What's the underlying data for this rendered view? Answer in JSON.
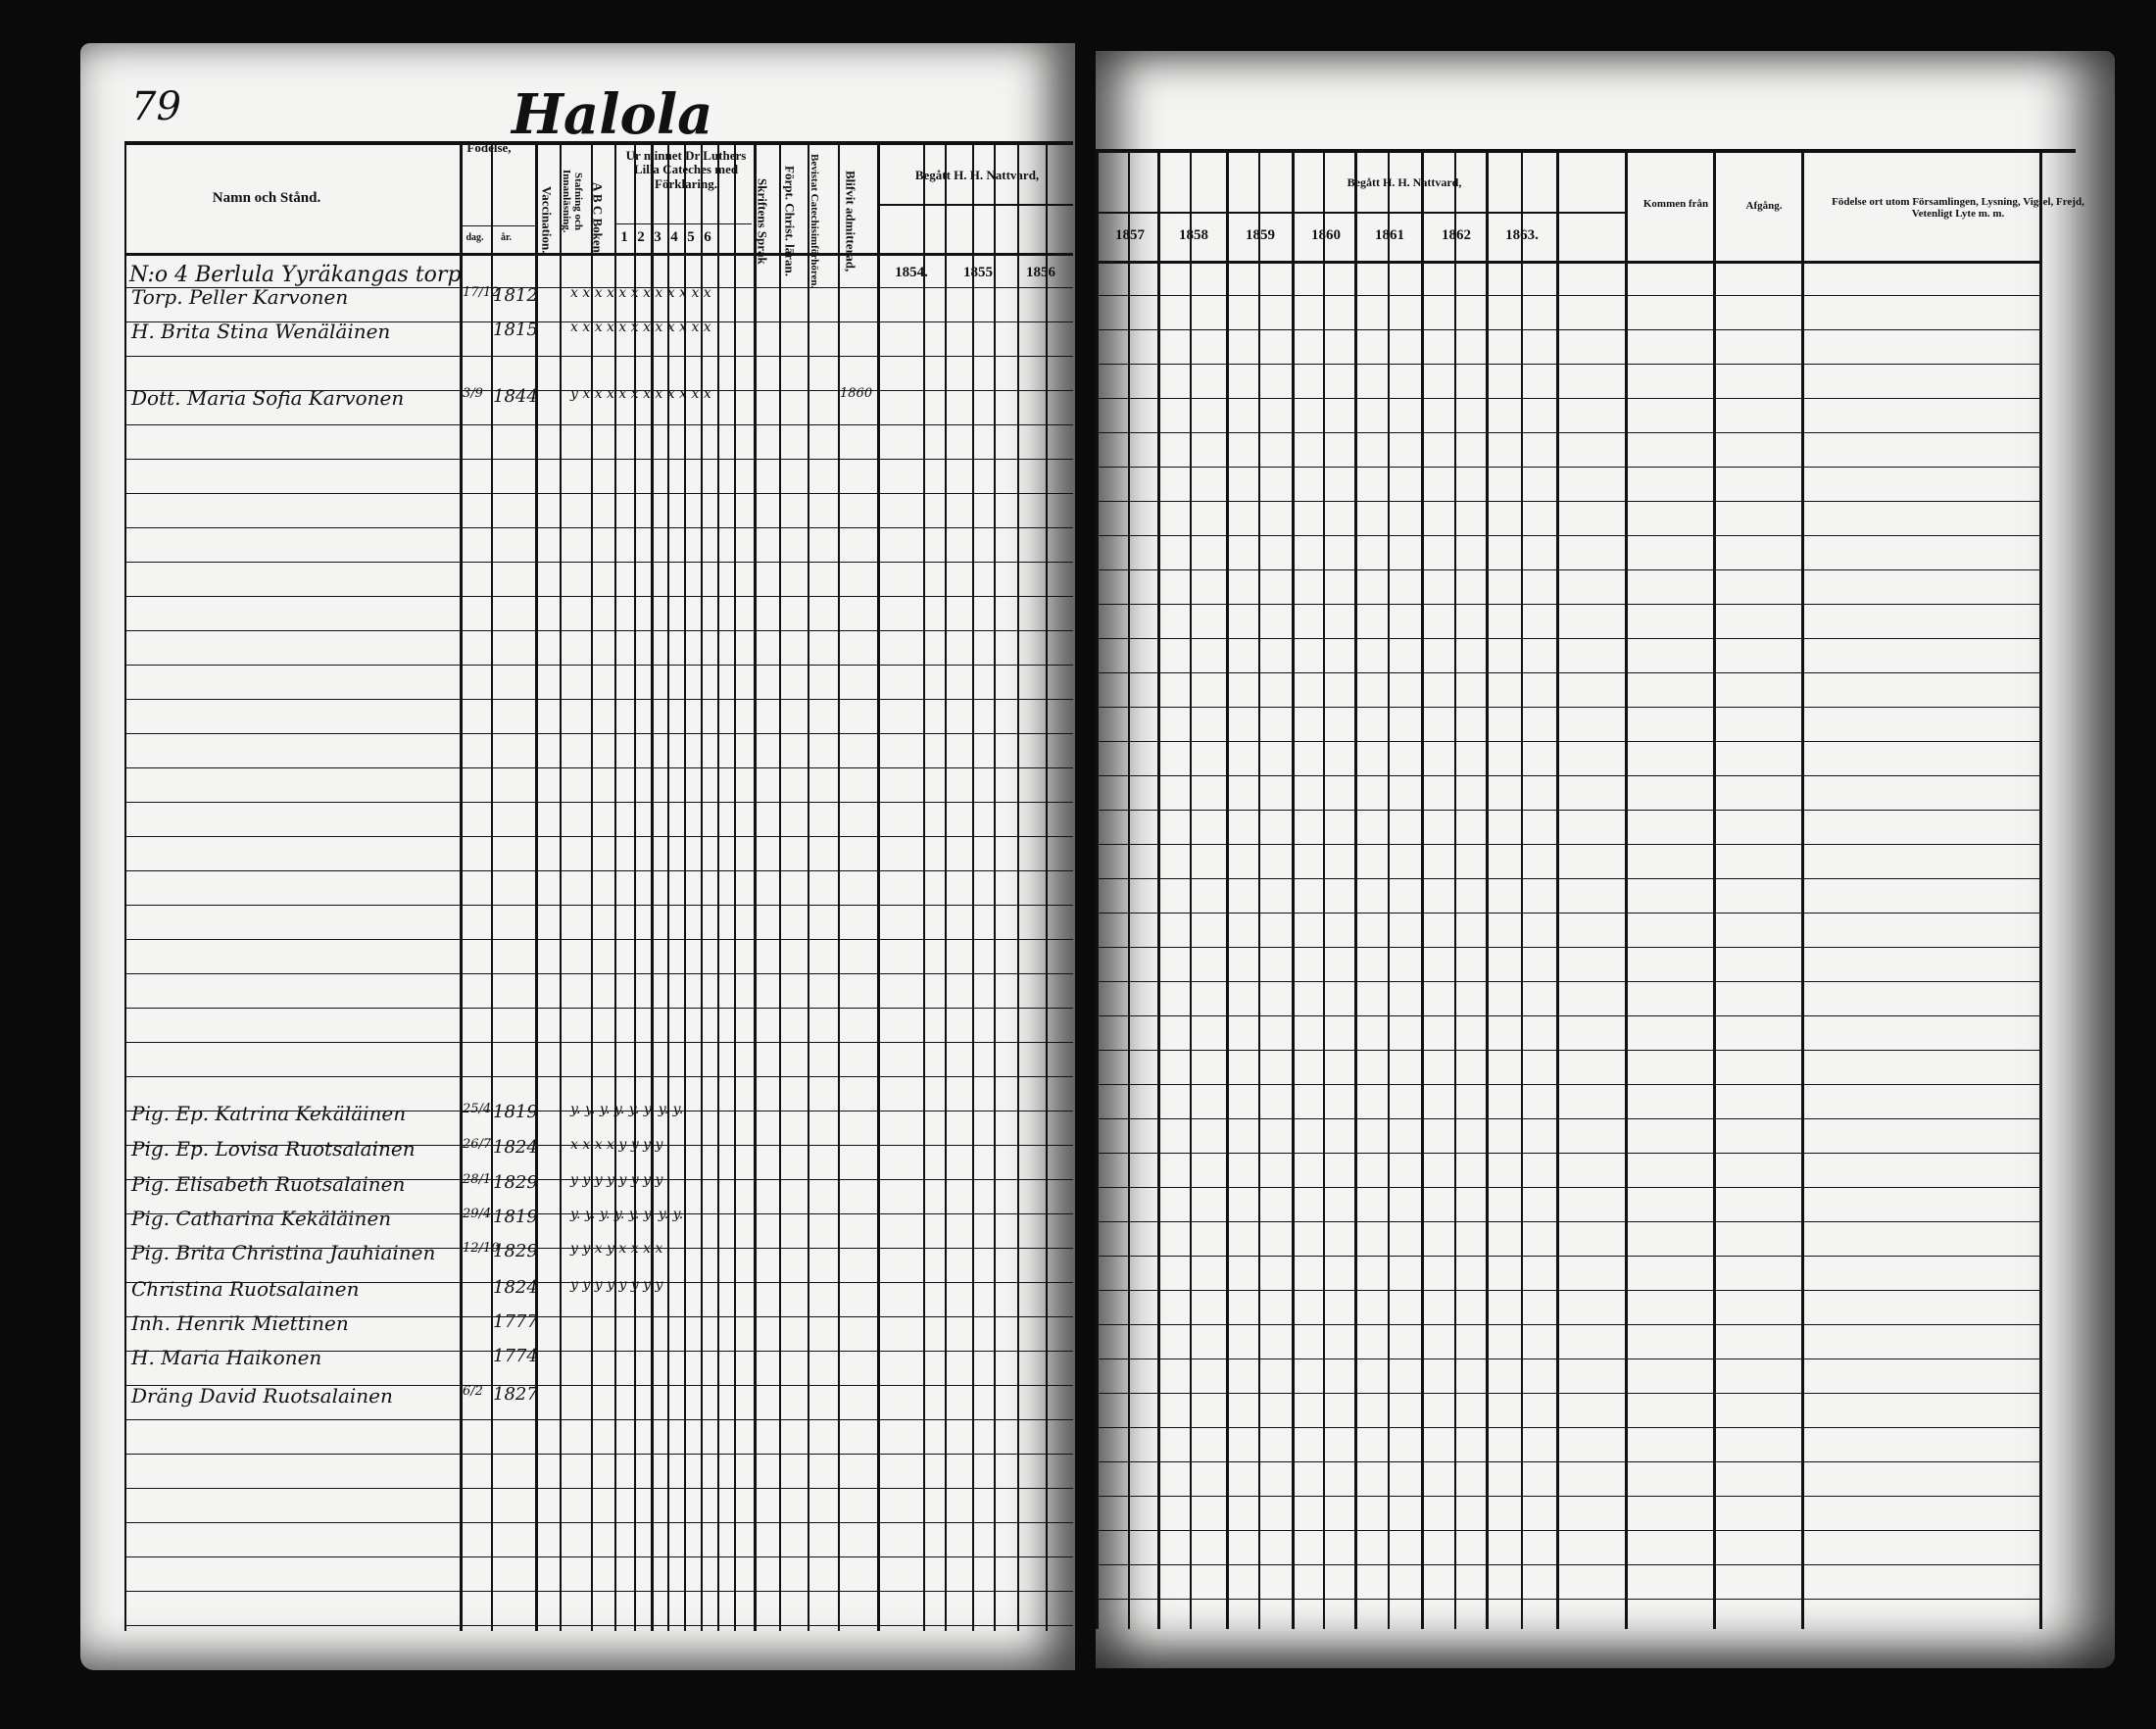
{
  "page_number": "79",
  "parish_title": "Halola",
  "left_headers": {
    "name": "Namn och Stånd.",
    "birth": "Födelse,",
    "birth_day": "dag.",
    "birth_year": "år.",
    "vaccination": "Vaccination.",
    "reading": "Stafning och Innanläsning.",
    "abc": "A B C Boken.",
    "catechism": "Ur minnet Dr Luthers Lilla Cateches med Förklaring.",
    "catechism_cols": [
      "1",
      "2",
      "3",
      "4",
      "5",
      "6"
    ],
    "scripture": "Skriftens Språk",
    "christ": "Förpt. Christ. läran.",
    "catechism_hearing": "Bevistat Catechisimförhören.",
    "admitted": "Blifvit admitterad,",
    "communion": "Begått H. H. Nattvard,",
    "years": [
      "1854.",
      "1855",
      "1856"
    ]
  },
  "right_headers": {
    "communion": "Begått H. H. Nattvard,",
    "years": [
      "1857",
      "1858",
      "1859",
      "1860",
      "1861",
      "1862",
      "1863."
    ],
    "came_from": "Kommen från",
    "departed": "Afgång.",
    "remarks": "Födelse ort utom Församlingen, Lysning, Vigsel, Frejd, Vetenligt Lyte m. m."
  },
  "household": "N:o 4 Berlula Yyräkangas torp",
  "entries": [
    {
      "name": "Torp. Peller Karvonen",
      "day": "17/12",
      "year": "1812",
      "marks": "x x x x x x x x x x x x",
      "admitted": "",
      "remark": ""
    },
    {
      "name": "H. Brita Stina Wenäläinen",
      "day": "",
      "year": "1815",
      "marks": "x x x x x x x x x x x x",
      "admitted": "",
      "remark": ""
    },
    {
      "name": "Dott. Maria Sofia Karvonen",
      "day": "3/9",
      "year": "1844",
      "marks": "y x x x x x x x x x x x",
      "admitted": "1860",
      "remark": ""
    },
    {
      "name": "Pig. Ep. Katrina Kekäläinen",
      "day": "25/4",
      "year": "1819",
      "marks": "y. y. y. y. y. y. y. y.",
      "admitted": "",
      "remark": ""
    },
    {
      "name": "Pig. Ep. Lovisa Ruotsalainen",
      "day": "26/7",
      "year": "1824",
      "marks": "x x x x y y y y",
      "admitted": "",
      "remark": ""
    },
    {
      "name": "Pig. Elisabeth Ruotsalainen",
      "day": "28/1",
      "year": "1829",
      "marks": "y y y y y y y y",
      "admitted": "",
      "remark": ""
    },
    {
      "name": "Pig. Catharina Kekäläinen",
      "day": "29/4",
      "year": "1819",
      "marks": "y. y. y. y. y. y. y. y.",
      "admitted": "",
      "remark": ""
    },
    {
      "name": "Pig. Brita Christina Jauhiainen",
      "day": "12/10",
      "year": "1829",
      "marks": "y y x y x x x x",
      "admitted": "",
      "remark": ""
    },
    {
      "name": "Christina Ruotsalainen",
      "day": "",
      "year": "1824",
      "marks": "y y y y y y y y",
      "admitted": "",
      "remark": ""
    },
    {
      "name": "Inh. Henrik Miettinen",
      "day": "",
      "year": "1777",
      "marks": "",
      "admitted": "",
      "remark": ""
    },
    {
      "name": "H. Maria Haikonen",
      "day": "",
      "year": "1774",
      "marks": "",
      "admitted": "",
      "remark": ""
    },
    {
      "name": "Dräng David Ruotsalainen",
      "day": "6/2",
      "year": "1827",
      "marks": "",
      "admitted": "",
      "remark": ""
    }
  ]
}
